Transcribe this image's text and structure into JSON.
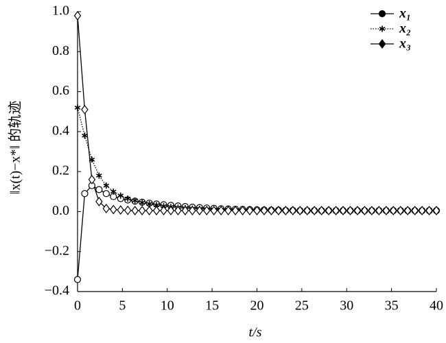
{
  "chart_data": {
    "type": "line",
    "xlabel": "t/s",
    "ylabel": "‖x(t)−x*‖ 的轨迹",
    "x": [
      0,
      0.8,
      1.6,
      2.4,
      3.2,
      4,
      4.8,
      5.6,
      6.4,
      7.2,
      8,
      8.8,
      9.6,
      10.4,
      11.2,
      12,
      12.8,
      13.6,
      14.4,
      15.2,
      16,
      16.8,
      17.6,
      18.4,
      19.2,
      20,
      20.8,
      21.6,
      22.4,
      23.2,
      24,
      24.8,
      25.6,
      26.4,
      27.2,
      28,
      28.8,
      29.6,
      30.4,
      31.2,
      32,
      32.8,
      33.6,
      34.4,
      35.2,
      36,
      36.8,
      37.6,
      38.4,
      39.2,
      40
    ],
    "series": [
      {
        "name": "x₁",
        "color": "#000000",
        "marker": "circle",
        "dash": "solid",
        "values": [
          -0.34,
          0.09,
          0.13,
          0.11,
          0.09,
          0.075,
          0.065,
          0.058,
          0.052,
          0.047,
          0.042,
          0.038,
          0.034,
          0.031,
          0.028,
          0.025,
          0.022,
          0.02,
          0.018,
          0.016,
          0.014,
          0.013,
          0.012,
          0.011,
          0.01,
          0.009,
          0.008,
          0.007,
          0.007,
          0.006,
          0.006,
          0.005,
          0.005,
          0.005,
          0.005,
          0.005,
          0.005,
          0.005,
          0.005,
          0.005,
          0.005,
          0.005,
          0.005,
          0.005,
          0.005,
          0.005,
          0.005,
          0.005,
          0.005,
          0.005,
          0.005
        ]
      },
      {
        "name": "x₂",
        "color": "#000000",
        "marker": "star",
        "dash": "dotted",
        "values": [
          0.52,
          0.38,
          0.26,
          0.18,
          0.13,
          0.1,
          0.08,
          0.065,
          0.055,
          0.045,
          0.038,
          0.032,
          0.027,
          0.023,
          0.02,
          0.017,
          0.015,
          0.013,
          0.011,
          0.01,
          0.009,
          0.008,
          0.007,
          0.006,
          0.006,
          0.005,
          0.005,
          0.005,
          0.005,
          0.005,
          0.005,
          0.005,
          0.005,
          0.005,
          0.005,
          0.005,
          0.005,
          0.005,
          0.005,
          0.005,
          0.005,
          0.005,
          0.005,
          0.005,
          0.005,
          0.005,
          0.005,
          0.005,
          0.005,
          0.005,
          0.005
        ]
      },
      {
        "name": "x₃",
        "color": "#000000",
        "marker": "diamond",
        "dash": "solid",
        "values": [
          0.98,
          0.51,
          0.16,
          0.05,
          0.015,
          0.01,
          0.008,
          0.006,
          0.005,
          0.005,
          0.005,
          0.005,
          0.005,
          0.005,
          0.005,
          0.005,
          0.005,
          0.005,
          0.005,
          0.005,
          0.005,
          0.005,
          0.005,
          0.005,
          0.005,
          0.005,
          0.005,
          0.005,
          0.005,
          0.005,
          0.005,
          0.005,
          0.005,
          0.005,
          0.005,
          0.005,
          0.005,
          0.005,
          0.005,
          0.005,
          0.005,
          0.005,
          0.005,
          0.005,
          0.005,
          0.005,
          0.005,
          0.005,
          0.005,
          0.005,
          0.005
        ]
      }
    ],
    "xlim": [
      0,
      40
    ],
    "xticks": [
      0,
      5,
      10,
      15,
      20,
      25,
      30,
      35,
      40
    ],
    "ylim": [
      -0.4,
      1.0
    ],
    "yticks": [
      {
        "value": -0.4,
        "label": "−0.4"
      },
      {
        "value": -0.2,
        "label": "−0.2"
      },
      {
        "value": 0,
        "label": "0.0"
      },
      0.2,
      0.4,
      0.6,
      0.8,
      {
        "value": 1,
        "label": "1.0"
      }
    ],
    "grid": false,
    "legend": "upper right"
  }
}
